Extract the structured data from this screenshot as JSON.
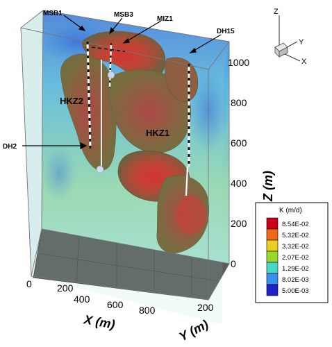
{
  "orientation": {
    "z": "Z",
    "y": "Y",
    "x": "X"
  },
  "wells": {
    "msb1": "MSB1",
    "msb3": "MSB3",
    "miz1": "MIZ1",
    "dh15": "DH15",
    "dh2": "DH2"
  },
  "zones": {
    "hkz2": "HKZ2",
    "hkz1": "HKZ1"
  },
  "axes": {
    "x_title": "X (m)",
    "y_title": "Y (m)",
    "z_title": "Z (m)",
    "x_ticks": [
      "0",
      "200",
      "400",
      "600",
      "800"
    ],
    "y_ticks": [
      "200"
    ],
    "z_ticks": [
      "0",
      "200",
      "400",
      "600",
      "800",
      "1000"
    ]
  },
  "legend": {
    "title": "K (m/d)",
    "entries": [
      {
        "label": "8.54E-02",
        "color": "#c8001a"
      },
      {
        "label": "5.32E-02",
        "color": "#f06818"
      },
      {
        "label": "3.32E-02",
        "color": "#e8d020"
      },
      {
        "label": "2.07E-02",
        "color": "#9ad830"
      },
      {
        "label": "1.29E-02",
        "color": "#48d8c8"
      },
      {
        "label": "8.02E-03",
        "color": "#3890f0"
      },
      {
        "label": "5.00E-03",
        "color": "#2020c8"
      }
    ]
  }
}
